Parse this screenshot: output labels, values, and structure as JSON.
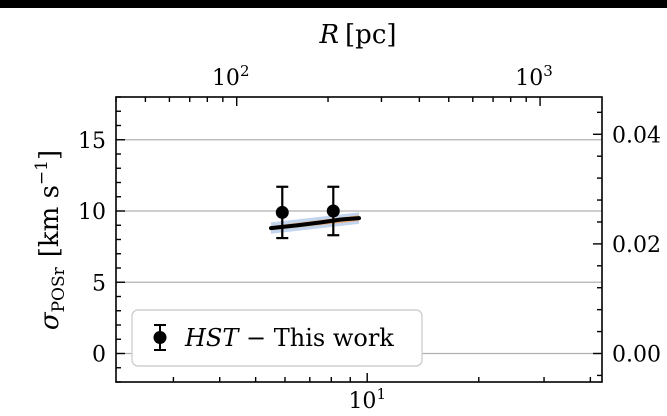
{
  "chart_data": {
    "type": "scatter",
    "title": "",
    "top_axis": {
      "label_symbol": "R",
      "label_unit": "[pc]",
      "scale": "log",
      "lim": [
        40,
        1600
      ],
      "major_ticks": [
        100,
        1000
      ],
      "tick_labels": [
        "10",
        "10"
      ],
      "tick_exponents": [
        "2",
        "3"
      ]
    },
    "bottom_axis": {
      "scale": "log",
      "lim": [
        2.1,
        43
      ],
      "major_ticks": [
        10
      ],
      "tick_labels": [
        "10"
      ],
      "tick_exponents": [
        "1"
      ],
      "visible_tick_text": "101"
    },
    "left_axis": {
      "label_symbol": "σ",
      "label_sub": "POSr",
      "label_unit_main": "[km s",
      "label_unit_sup": "−1",
      "label_unit_close": "]",
      "lim": [
        -2,
        18
      ],
      "ticks": [
        0,
        5,
        10,
        15
      ],
      "tick_labels": [
        "0",
        "5",
        "10",
        "15"
      ]
    },
    "right_axis": {
      "lim": [
        -0.0052,
        0.0468
      ],
      "ticks": [
        0.0,
        0.02,
        0.04
      ],
      "tick_labels": [
        "0.00",
        "0.02",
        "0.04"
      ]
    },
    "grid": "horizontal",
    "series": [
      {
        "name": "HST − This work",
        "legend_italic": "HST",
        "legend_rest": " − This work",
        "color": "#000000",
        "marker": "circle",
        "points": [
          {
            "x": 5.9,
            "y": 9.9,
            "yerr": 1.8
          },
          {
            "x": 8.1,
            "y": 10.0,
            "yerr": 1.7
          }
        ]
      }
    ],
    "model_curve": {
      "color": "#000000",
      "x": [
        5.5,
        6.5,
        7.5,
        8.5,
        9.5
      ],
      "y": [
        8.8,
        9.0,
        9.2,
        9.4,
        9.5
      ]
    },
    "model_bands": [
      {
        "color": "#aec6e8",
        "x": [
          5.5,
          9.5
        ],
        "y_low": [
          8.4,
          9.1
        ],
        "y_high": [
          9.2,
          9.9
        ]
      },
      {
        "color": "#f4a45a",
        "x": [
          5.5,
          9.5
        ],
        "y_low": [
          8.65,
          9.3
        ],
        "y_high": [
          8.95,
          9.7
        ]
      }
    ],
    "legend": {
      "position": "lower-left"
    }
  }
}
